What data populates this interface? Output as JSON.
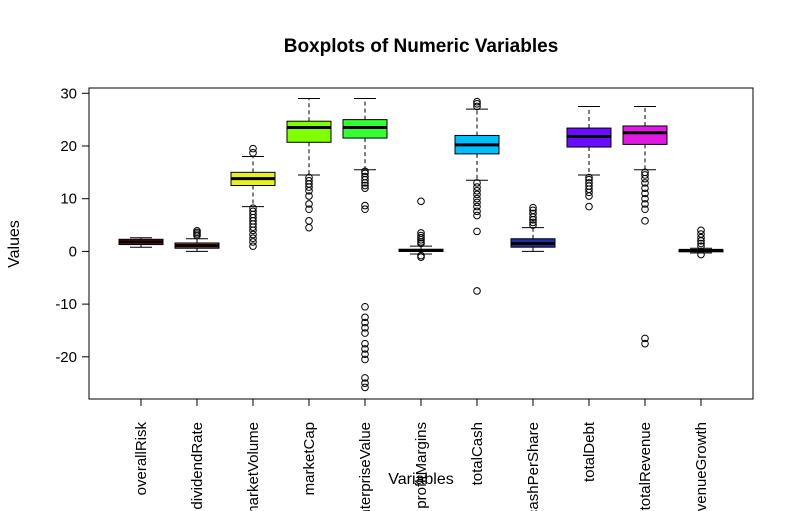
{
  "chart_data": {
    "type": "boxplot",
    "title": "Boxplots of Numeric Variables",
    "xlabel": "Variables",
    "ylabel": "Values",
    "ylim": [
      -28,
      31
    ],
    "yticks": [
      -20,
      -10,
      0,
      10,
      20,
      30
    ],
    "ytick_labels": [
      "-20",
      "-10",
      "0",
      "10",
      "20",
      "30"
    ],
    "grid": false,
    "legend": "none",
    "categories": [
      "overallRisk",
      "dividendRate",
      "marketVolume",
      "marketCap",
      "enterpriseValue",
      "profitMargins",
      "totalCash",
      "cashPerShare",
      "totalDebt",
      "totalRevenue",
      "revenueGrowth"
    ],
    "boxes": [
      {
        "color": "#8B1A1A",
        "whisker_low": 0.8,
        "q1": 1.3,
        "median": 1.8,
        "q3": 2.3,
        "whisker_high": 2.6,
        "outliers": []
      },
      {
        "color": "#A0522D",
        "whisker_low": 0.0,
        "q1": 0.6,
        "median": 1.1,
        "q3": 1.6,
        "whisker_high": 2.4,
        "outliers": [
          3.0,
          3.3,
          3.6,
          3.9
        ]
      },
      {
        "color": "#E6F21A",
        "whisker_low": 8.5,
        "q1": 12.5,
        "median": 13.8,
        "q3": 15.0,
        "whisker_high": 18.0,
        "outliers": [
          1.0,
          1.8,
          2.5,
          3.2,
          4.0,
          4.6,
          5.2,
          5.8,
          6.4,
          7.0,
          7.6,
          8.2,
          18.7,
          19.5
        ]
      },
      {
        "color": "#7FFF00",
        "whisker_low": 14.5,
        "q1": 20.7,
        "median": 23.5,
        "q3": 24.7,
        "whisker_high": 29.0,
        "outliers": [
          4.5,
          5.8,
          8.0,
          9.0,
          10.5,
          11.5,
          12.2,
          12.8,
          13.4,
          14.0
        ]
      },
      {
        "color": "#33FF33",
        "whisker_low": 15.5,
        "q1": 21.5,
        "median": 23.5,
        "q3": 25.0,
        "whisker_high": 29.0,
        "outliers": [
          8.0,
          8.7,
          12.0,
          12.5,
          13.0,
          13.6,
          14.2,
          14.8,
          15.2,
          -10.5,
          -12.5,
          -13.5,
          -14.5,
          -15.5,
          -17.5,
          -18.5,
          -19.5,
          -20.5,
          -24.0,
          -25.0,
          -25.8
        ]
      },
      {
        "color": "#00CC66",
        "whisker_low": -0.5,
        "q1": 0.0,
        "median": 0.2,
        "q3": 0.4,
        "whisker_high": 1.0,
        "outliers": [
          9.5,
          3.5,
          3.0,
          2.6,
          2.2,
          1.8,
          1.5,
          -0.8,
          -1.1
        ]
      },
      {
        "color": "#00BFFF",
        "whisker_low": 13.5,
        "q1": 18.5,
        "median": 20.2,
        "q3": 22.0,
        "whisker_high": 27.0,
        "outliers": [
          -7.5,
          3.8,
          6.8,
          7.6,
          8.5,
          9.3,
          10.0,
          10.8,
          11.5,
          12.2,
          13.0,
          27.5,
          28.0,
          28.4
        ]
      },
      {
        "color": "#1C2FA8",
        "whisker_low": 0.0,
        "q1": 0.8,
        "median": 1.5,
        "q3": 2.4,
        "whisker_high": 4.5,
        "outliers": [
          5.0,
          5.5,
          6.0,
          6.5,
          7.2,
          7.8,
          8.3
        ]
      },
      {
        "color": "#6A0DFF",
        "whisker_low": 14.5,
        "q1": 19.8,
        "median": 21.8,
        "q3": 23.4,
        "whisker_high": 27.5,
        "outliers": [
          8.5,
          10.5,
          11.2,
          11.8,
          12.4,
          13.0,
          13.6,
          14.0
        ]
      },
      {
        "color": "#E01AE0",
        "whisker_low": 15.5,
        "q1": 20.3,
        "median": 22.5,
        "q3": 23.8,
        "whisker_high": 27.5,
        "outliers": [
          -17.5,
          -16.5,
          5.8,
          8.0,
          9.0,
          10.0,
          11.0,
          12.0,
          13.0,
          13.8,
          14.5,
          15.0
        ]
      },
      {
        "color": "#FF1A8C",
        "whisker_low": -0.3,
        "q1": 0.0,
        "median": 0.2,
        "q3": 0.3,
        "whisker_high": 0.6,
        "outliers": [
          4.0,
          3.3,
          2.6,
          2.0,
          1.5,
          1.0,
          -0.6
        ]
      }
    ]
  }
}
